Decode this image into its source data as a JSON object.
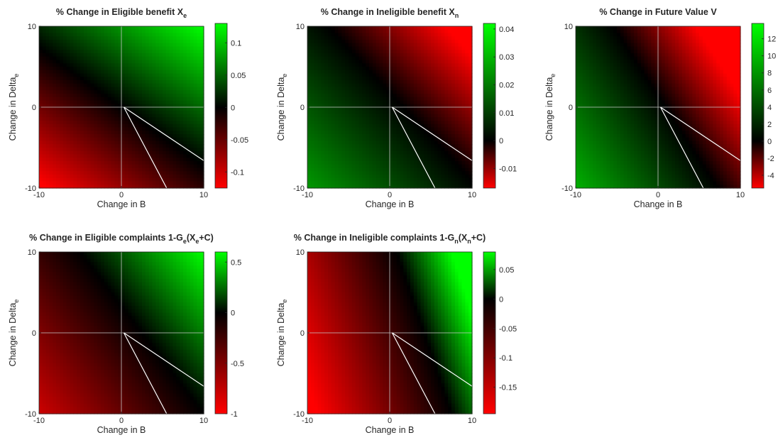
{
  "chart_data": [
    {
      "type": "heatmap",
      "title": "% Change in Eligible benefit X",
      "title_sub": "e",
      "title_post": "",
      "xlabel": "Change in B",
      "ylabel": "Change in Delta",
      "ylabel_sub": "e",
      "x_ticks": [
        "-10",
        "0",
        "10"
      ],
      "y_ticks": [
        "-10",
        "0",
        "10"
      ],
      "xlim": [
        -10,
        10
      ],
      "ylim": [
        -10,
        10
      ],
      "colorbar": {
        "ticks": [
          0.1,
          0.05,
          0,
          -0.05,
          -0.1
        ],
        "labels": [
          "0.1",
          "0.05",
          "0",
          "-0.05",
          "-0.1"
        ],
        "range": [
          -0.125,
          0.13
        ]
      },
      "field": {
        "a": 0.0055,
        "b": 0.0075,
        "c": 0.0
      },
      "colormap": [
        "#ff0000",
        "#000000",
        "#00ff00"
      ],
      "grid": true,
      "contour_lines": [
        {
          "from": [
            0.3,
            0
          ],
          "to": [
            10,
            -6.6
          ]
        },
        {
          "from": [
            0.3,
            0
          ],
          "to": [
            5.5,
            -10
          ]
        }
      ]
    },
    {
      "type": "heatmap",
      "title": "% Change in Ineligible benefit X",
      "title_sub": "n",
      "title_post": "",
      "xlabel": "Change in B",
      "ylabel": "Change in Delta",
      "ylabel_sub": "e",
      "x_ticks": [
        "-10",
        "0",
        "10"
      ],
      "y_ticks": [
        "-10",
        "0",
        "10"
      ],
      "xlim": [
        -10,
        10
      ],
      "ylim": [
        -10,
        10
      ],
      "colorbar": {
        "ticks": [
          0.04,
          0.03,
          0.02,
          0.01,
          0,
          -0.01
        ],
        "labels": [
          "0.04",
          "0.03",
          "0.02",
          "0.01",
          "0",
          "-0.01"
        ],
        "range": [
          -0.017,
          0.042
        ]
      },
      "field": {
        "a": -0.0012,
        "b": -0.0011,
        "c": 0.002
      },
      "colormap": [
        "#ff0000",
        "#000000",
        "#00ff00"
      ],
      "grid": true,
      "contour_lines": [
        {
          "from": [
            0.3,
            0
          ],
          "to": [
            10,
            -6.6
          ]
        },
        {
          "from": [
            0.3,
            0
          ],
          "to": [
            5.5,
            -10
          ]
        }
      ]
    },
    {
      "type": "heatmap",
      "title": "% Change in Future Value V",
      "title_sub": "",
      "title_post": "",
      "xlabel": "Change in B",
      "ylabel": "Change in Delta",
      "ylabel_sub": "e",
      "x_ticks": [
        "-10",
        "0",
        "10"
      ],
      "y_ticks": [
        "-10",
        "0",
        "10"
      ],
      "xlim": [
        -10,
        10
      ],
      "ylim": [
        -10,
        10
      ],
      "colorbar": {
        "ticks": [
          12,
          10,
          8,
          6,
          4,
          2,
          0,
          -2,
          -4
        ],
        "labels": [
          "12",
          "10",
          "8",
          "6",
          "4",
          "2",
          "0",
          "-2",
          "-4"
        ],
        "range": [
          -5.5,
          13.8
        ]
      },
      "field": {
        "a": -0.55,
        "b": -0.35,
        "c": 0.5
      },
      "colormap": [
        "#ff0000",
        "#000000",
        "#00ff00"
      ],
      "grid": true,
      "contour_lines": [
        {
          "from": [
            0.3,
            0
          ],
          "to": [
            10,
            -6.6
          ]
        },
        {
          "from": [
            0.3,
            0
          ],
          "to": [
            5.5,
            -10
          ]
        }
      ]
    },
    {
      "type": "heatmap",
      "title": "% Change in Eligible complaints 1-G",
      "title_sub": "e",
      "title_mid": "(X",
      "title_sub2": "e",
      "title_post": "+C)",
      "xlabel": "Change in B",
      "ylabel": "Change in Delta",
      "ylabel_sub": "e",
      "x_ticks": [
        "-10",
        "0",
        "10"
      ],
      "y_ticks": [
        "-10",
        "0",
        "10"
      ],
      "xlim": [
        -10,
        10
      ],
      "ylim": [
        -10,
        10
      ],
      "colorbar": {
        "ticks": [
          0.5,
          0,
          -0.5,
          -1
        ],
        "labels": [
          "0.5",
          "0",
          "-0.5",
          "-1"
        ],
        "range": [
          -1.0,
          0.6
        ]
      },
      "field": {
        "a": 0.04,
        "b": 0.03,
        "c": -0.1
      },
      "colormap": [
        "#ff0000",
        "#000000",
        "#00ff00"
      ],
      "grid": true,
      "contour_lines": [
        {
          "from": [
            0.3,
            0
          ],
          "to": [
            10,
            -6.6
          ]
        },
        {
          "from": [
            0.3,
            0
          ],
          "to": [
            5.5,
            -10
          ]
        }
      ]
    },
    {
      "type": "heatmap",
      "title": "% Change in Ineligible complaints 1-G",
      "title_sub": "n",
      "title_mid": "(X",
      "title_sub2": "n",
      "title_post": "+C)",
      "xlabel": "Change in B",
      "ylabel": "Change in Delta",
      "ylabel_sub": "e",
      "x_ticks": [
        "-10",
        "0",
        "10"
      ],
      "y_ticks": [
        "-10",
        "0",
        "10"
      ],
      "xlim": [
        -10,
        10
      ],
      "ylim": [
        -10,
        10
      ],
      "colorbar": {
        "ticks": [
          0.05,
          0,
          -0.05,
          -0.1,
          -0.15
        ],
        "labels": [
          "0.05",
          "0",
          "-0.05",
          "-0.1",
          "-0.15"
        ],
        "range": [
          -0.195,
          0.08
        ]
      },
      "field": {
        "a": 0.012,
        "b": 0.004,
        "c": -0.05
      },
      "colormap": [
        "#ff0000",
        "#000000",
        "#00ff00"
      ],
      "grid": true,
      "contour_lines": [
        {
          "from": [
            0.3,
            0
          ],
          "to": [
            10,
            -6.6
          ]
        },
        {
          "from": [
            0.3,
            0
          ],
          "to": [
            5.5,
            -10
          ]
        }
      ]
    }
  ]
}
